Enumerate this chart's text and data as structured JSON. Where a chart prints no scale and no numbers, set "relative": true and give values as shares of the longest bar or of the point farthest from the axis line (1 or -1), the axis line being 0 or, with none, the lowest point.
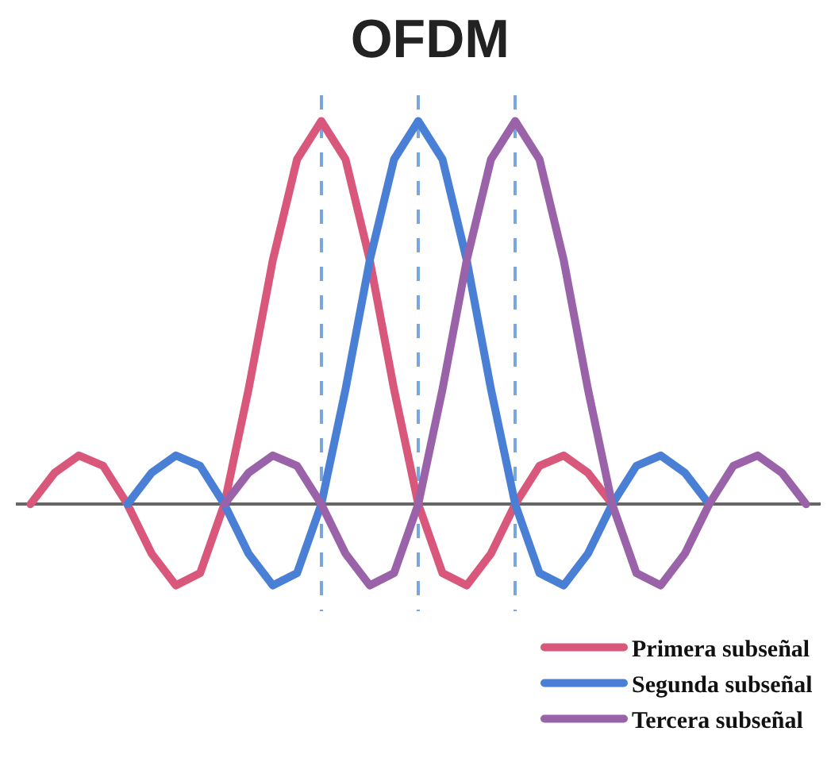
{
  "chart_data": {
    "type": "line",
    "title": "OFDM",
    "relative": true,
    "categories": [
      null,
      null,
      null,
      null,
      null,
      null,
      null,
      null,
      null,
      null,
      null,
      null,
      null,
      null,
      null,
      null,
      null,
      null,
      null,
      null,
      null,
      null,
      null,
      null,
      null,
      null,
      null,
      null,
      null,
      null,
      null,
      null,
      null
    ],
    "series": [
      {
        "name": "Primera subseñal",
        "color": "#d9577a",
        "values": [
          0,
          0.082,
          0.127,
          0.1,
          0,
          -0.129,
          -0.212,
          -0.18,
          0,
          0.3,
          0.637,
          0.9,
          1,
          0.9,
          0.637,
          0.3,
          0,
          -0.18,
          -0.212,
          -0.129,
          0,
          0.1,
          0.127,
          0.082,
          0,
          null,
          null,
          null,
          null,
          null,
          null,
          null,
          null
        ]
      },
      {
        "name": "Segunda subseñal",
        "color": "#4a7fd6",
        "values": [
          null,
          null,
          null,
          null,
          0,
          0.082,
          0.127,
          0.1,
          0,
          -0.129,
          -0.212,
          -0.18,
          0,
          0.3,
          0.637,
          0.9,
          1,
          0.9,
          0.637,
          0.3,
          0,
          -0.18,
          -0.212,
          -0.129,
          0,
          0.1,
          0.127,
          0.082,
          0,
          null,
          null,
          null,
          null
        ]
      },
      {
        "name": "Tercera subseñal",
        "color": "#9a62a8",
        "values": [
          null,
          null,
          null,
          null,
          null,
          null,
          null,
          null,
          0,
          0.082,
          0.127,
          0.1,
          0,
          -0.129,
          -0.212,
          -0.18,
          0,
          0.3,
          0.637,
          0.9,
          1,
          0.9,
          0.637,
          0.3,
          0,
          -0.18,
          -0.212,
          -0.129,
          0,
          0.1,
          0.127,
          0.082,
          0
        ]
      }
    ],
    "legend": "bottom right",
    "grid": "x",
    "marker": "none",
    "line_style": "solid"
  }
}
